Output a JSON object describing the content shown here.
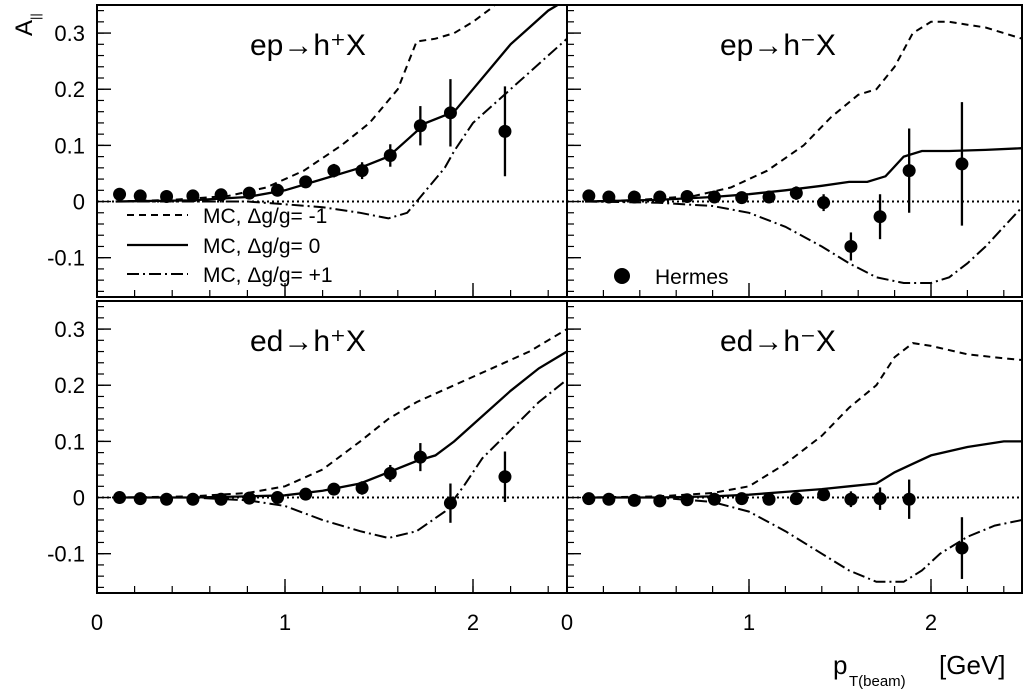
{
  "figure": {
    "ylabel_main": "A",
    "ylabel_sub": "||",
    "xlabel_main": "p",
    "xlabel_sub": "T(beam)",
    "xlabel_unit": "[GeV]"
  },
  "legend": {
    "mc_minus1": "MC, Δg/g= -1",
    "mc_zero": "MC, Δg/g= 0",
    "mc_plus1": "MC, Δg/g= +1",
    "hermes": "Hermes"
  },
  "chart_data": [
    {
      "type": "line",
      "title": "ep→h⁺X",
      "xlim": [
        0,
        2.5
      ],
      "ylim": [
        -0.17,
        0.35
      ],
      "xticks": [
        0,
        1,
        2
      ],
      "yticks": [
        -0.1,
        0,
        0.1,
        0.2,
        0.3
      ],
      "ytick_labels": [
        "-0.1",
        "0",
        "0.1",
        "0.2",
        "0.3"
      ],
      "series": [
        {
          "name": "MC, Δg/g= -1",
          "style": "dashed",
          "x": [
            0.1,
            0.4,
            0.7,
            0.9,
            1.1,
            1.3,
            1.45,
            1.6,
            1.7,
            1.8,
            1.9,
            2.0,
            2.1,
            2.2,
            2.3
          ],
          "y": [
            0.0,
            0.003,
            0.01,
            0.025,
            0.055,
            0.1,
            0.14,
            0.2,
            0.285,
            0.29,
            0.3,
            0.32,
            0.345,
            0.38,
            0.42
          ]
        },
        {
          "name": "MC, Δg/g= 0",
          "style": "solid",
          "x": [
            0.1,
            0.5,
            0.8,
            1.0,
            1.2,
            1.4,
            1.55,
            1.65,
            1.75,
            1.9,
            2.0,
            2.1,
            2.2,
            2.3,
            2.4,
            2.5
          ],
          "y": [
            0.0,
            0.002,
            0.008,
            0.02,
            0.04,
            0.06,
            0.08,
            0.11,
            0.14,
            0.16,
            0.2,
            0.24,
            0.28,
            0.31,
            0.34,
            0.36
          ]
        },
        {
          "name": "MC, Δg/g= +1",
          "style": "dashdot",
          "x": [
            0.1,
            0.5,
            0.8,
            1.0,
            1.2,
            1.4,
            1.55,
            1.65,
            1.75,
            1.85,
            1.9,
            2.0,
            2.1,
            2.2,
            2.3,
            2.4,
            2.5
          ],
          "y": [
            0.0,
            0.0,
            0.0,
            -0.005,
            -0.01,
            -0.02,
            -0.03,
            -0.02,
            0.02,
            0.06,
            0.09,
            0.14,
            0.17,
            0.2,
            0.23,
            0.26,
            0.29
          ]
        },
        {
          "name": "Hermes",
          "style": "points",
          "x": [
            0.12,
            0.23,
            0.37,
            0.51,
            0.66,
            0.81,
            0.96,
            1.11,
            1.26,
            1.41,
            1.56,
            1.72,
            1.88,
            2.17
          ],
          "y": [
            0.013,
            0.01,
            0.009,
            0.01,
            0.012,
            0.015,
            0.02,
            0.035,
            0.055,
            0.055,
            0.082,
            0.135,
            0.158,
            0.125
          ],
          "err": [
            0.003,
            0.003,
            0.003,
            0.003,
            0.004,
            0.005,
            0.007,
            0.009,
            0.012,
            0.015,
            0.02,
            0.035,
            0.06,
            0.08
          ]
        }
      ]
    },
    {
      "type": "line",
      "title": "ep→h⁻X",
      "xlim": [
        0,
        2.5
      ],
      "ylim": [
        -0.17,
        0.35
      ],
      "xticks": [
        0,
        1,
        2
      ],
      "yticks": [
        -0.1,
        0,
        0.1,
        0.2,
        0.3
      ],
      "series": [
        {
          "name": "MC, Δg/g= -1",
          "style": "dashed",
          "x": [
            0.1,
            0.4,
            0.7,
            0.9,
            1.1,
            1.3,
            1.45,
            1.6,
            1.7,
            1.8,
            1.9,
            2.0,
            2.1,
            2.2,
            2.3,
            2.4,
            2.5
          ],
          "y": [
            0.0,
            0.003,
            0.01,
            0.025,
            0.055,
            0.1,
            0.15,
            0.19,
            0.2,
            0.24,
            0.3,
            0.32,
            0.32,
            0.315,
            0.31,
            0.3,
            0.29
          ]
        },
        {
          "name": "MC, Δg/g= 0",
          "style": "solid",
          "x": [
            0.1,
            0.5,
            0.8,
            1.0,
            1.2,
            1.4,
            1.55,
            1.65,
            1.75,
            1.85,
            1.95,
            2.1,
            2.3,
            2.5
          ],
          "y": [
            0.0,
            0.003,
            0.008,
            0.013,
            0.02,
            0.028,
            0.035,
            0.035,
            0.045,
            0.08,
            0.09,
            0.09,
            0.092,
            0.095
          ]
        },
        {
          "name": "MC, Δg/g= +1",
          "style": "dashdot",
          "x": [
            0.1,
            0.5,
            0.8,
            1.0,
            1.2,
            1.4,
            1.55,
            1.7,
            1.85,
            2.0,
            2.1,
            2.2,
            2.3,
            2.4,
            2.5
          ],
          "y": [
            0.0,
            -0.002,
            -0.008,
            -0.02,
            -0.045,
            -0.08,
            -0.11,
            -0.135,
            -0.145,
            -0.145,
            -0.135,
            -0.11,
            -0.08,
            -0.045,
            -0.01
          ]
        },
        {
          "name": "Hermes",
          "style": "points",
          "x": [
            0.12,
            0.23,
            0.37,
            0.51,
            0.66,
            0.81,
            0.96,
            1.11,
            1.26,
            1.41,
            1.56,
            1.72,
            1.88,
            2.17
          ],
          "y": [
            0.01,
            0.008,
            0.008,
            0.008,
            0.009,
            0.008,
            0.007,
            0.008,
            0.015,
            -0.002,
            -0.08,
            -0.027,
            0.055,
            0.067
          ],
          "err": [
            0.003,
            0.003,
            0.003,
            0.003,
            0.004,
            0.005,
            0.007,
            0.009,
            0.012,
            0.015,
            0.025,
            0.04,
            0.075,
            0.11
          ]
        }
      ]
    },
    {
      "type": "line",
      "title": "ed→h⁺X",
      "xlim": [
        0,
        2.5
      ],
      "ylim": [
        -0.17,
        0.35
      ],
      "xticks": [
        0,
        1,
        2
      ],
      "yticks": [
        -0.1,
        0,
        0.1,
        0.2,
        0.3
      ],
      "xtick_labels": [
        "0",
        "1",
        "2"
      ],
      "ytick_labels": [
        "-0.1",
        "0",
        "0.1",
        "0.2",
        "0.3"
      ],
      "series": [
        {
          "name": "MC, Δg/g= -1",
          "style": "dashed",
          "x": [
            0.1,
            0.5,
            0.8,
            1.0,
            1.2,
            1.4,
            1.55,
            1.7,
            1.9,
            2.1,
            2.3,
            2.5
          ],
          "y": [
            0.0,
            0.002,
            0.008,
            0.02,
            0.05,
            0.1,
            0.14,
            0.17,
            0.2,
            0.23,
            0.26,
            0.3
          ]
        },
        {
          "name": "MC, Δg/g= 0",
          "style": "solid",
          "x": [
            0.1,
            0.5,
            0.8,
            1.0,
            1.2,
            1.4,
            1.55,
            1.7,
            1.8,
            1.9,
            2.0,
            2.2,
            2.35,
            2.5
          ],
          "y": [
            0.0,
            0.0,
            0.002,
            0.004,
            0.012,
            0.025,
            0.045,
            0.065,
            0.075,
            0.1,
            0.13,
            0.19,
            0.23,
            0.26
          ]
        },
        {
          "name": "MC, Δg/g= +1",
          "style": "dashdot",
          "x": [
            0.1,
            0.5,
            0.8,
            1.0,
            1.2,
            1.4,
            1.55,
            1.7,
            1.85,
            1.95,
            2.05,
            2.2,
            2.35,
            2.5
          ],
          "y": [
            0.0,
            0.0,
            -0.005,
            -0.015,
            -0.04,
            -0.06,
            -0.072,
            -0.06,
            -0.025,
            0.02,
            0.07,
            0.12,
            0.17,
            0.21
          ]
        },
        {
          "name": "Hermes",
          "style": "points",
          "x": [
            0.12,
            0.23,
            0.37,
            0.51,
            0.66,
            0.81,
            0.96,
            1.11,
            1.26,
            1.41,
            1.56,
            1.72,
            1.88,
            2.17
          ],
          "y": [
            0.0,
            -0.002,
            -0.003,
            -0.003,
            -0.003,
            -0.001,
            0.0,
            0.006,
            0.015,
            0.017,
            0.043,
            0.072,
            -0.01,
            0.037
          ],
          "err": [
            0.003,
            0.003,
            0.003,
            0.003,
            0.004,
            0.005,
            0.007,
            0.008,
            0.01,
            0.012,
            0.015,
            0.025,
            0.035,
            0.045
          ]
        }
      ]
    },
    {
      "type": "line",
      "title": "ed→h⁻X",
      "xlim": [
        0,
        2.5
      ],
      "ylim": [
        -0.17,
        0.35
      ],
      "xticks": [
        0,
        1,
        2
      ],
      "yticks": [
        -0.1,
        0,
        0.1,
        0.2,
        0.3
      ],
      "xtick_labels": [
        "0",
        "1",
        "2"
      ],
      "series": [
        {
          "name": "MC, Δg/g= -1",
          "style": "dashed",
          "x": [
            0.1,
            0.5,
            0.8,
            1.0,
            1.2,
            1.4,
            1.55,
            1.7,
            1.8,
            1.9,
            2.0,
            2.2,
            2.4,
            2.5
          ],
          "y": [
            0.0,
            0.002,
            0.008,
            0.02,
            0.06,
            0.11,
            0.16,
            0.2,
            0.25,
            0.275,
            0.27,
            0.255,
            0.248,
            0.245
          ]
        },
        {
          "name": "MC, Δg/g= 0",
          "style": "solid",
          "x": [
            0.1,
            0.5,
            0.8,
            1.0,
            1.2,
            1.4,
            1.55,
            1.7,
            1.8,
            1.9,
            2.0,
            2.2,
            2.4,
            2.5
          ],
          "y": [
            0.0,
            0.0,
            0.002,
            0.005,
            0.01,
            0.015,
            0.02,
            0.025,
            0.045,
            0.06,
            0.075,
            0.09,
            0.1,
            0.1
          ]
        },
        {
          "name": "MC, Δg/g= +1",
          "style": "dashdot",
          "x": [
            0.1,
            0.5,
            0.8,
            1.0,
            1.2,
            1.4,
            1.55,
            1.7,
            1.85,
            1.95,
            2.05,
            2.2,
            2.35,
            2.5
          ],
          "y": [
            0.0,
            0.0,
            -0.008,
            -0.025,
            -0.06,
            -0.1,
            -0.13,
            -0.15,
            -0.15,
            -0.13,
            -0.1,
            -0.07,
            -0.05,
            -0.04
          ]
        },
        {
          "name": "Hermes",
          "style": "points",
          "x": [
            0.12,
            0.23,
            0.37,
            0.51,
            0.66,
            0.81,
            0.96,
            1.11,
            1.26,
            1.41,
            1.56,
            1.72,
            1.88,
            2.17
          ],
          "y": [
            -0.002,
            -0.003,
            -0.005,
            -0.006,
            -0.004,
            -0.003,
            -0.002,
            -0.003,
            -0.002,
            0.005,
            -0.003,
            -0.002,
            -0.003,
            -0.09
          ],
          "err": [
            0.003,
            0.003,
            0.003,
            0.003,
            0.004,
            0.005,
            0.006,
            0.007,
            0.008,
            0.01,
            0.014,
            0.02,
            0.035,
            0.055
          ]
        }
      ]
    }
  ]
}
